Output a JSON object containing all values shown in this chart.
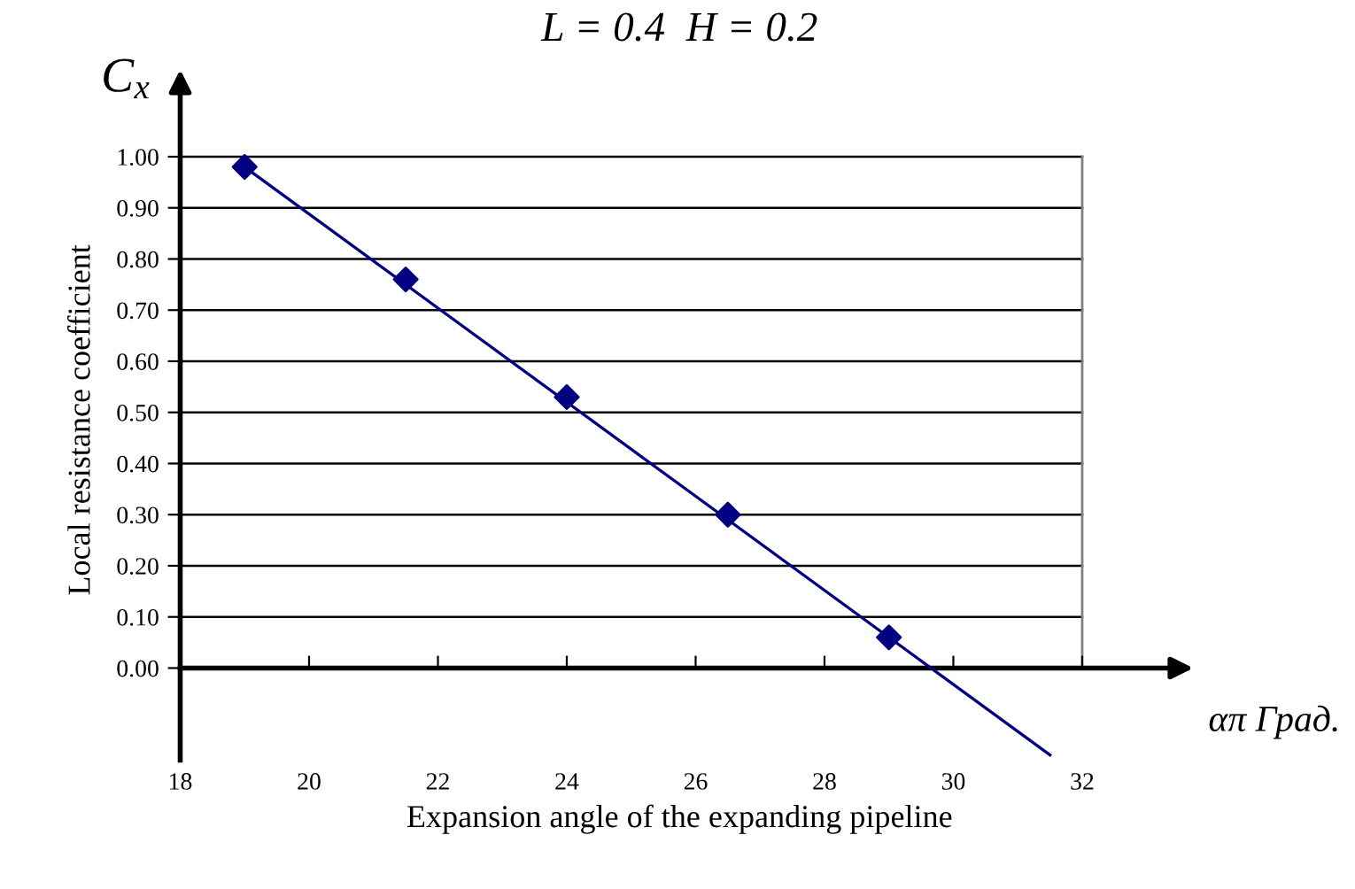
{
  "chart_data": {
    "type": "scatter",
    "title": "L = 0.4  H = 0.2",
    "ylabel": "Local resistance coefficient",
    "xlabel": "Expansion angle of the expanding pipeline",
    "annotations": [
      "C$_{x}$",
      "απ Град."
    ],
    "x": [
      19,
      21.5,
      24,
      26.5,
      29
    ],
    "series": [
      {
        "color": "#000080",
        "marker": "diamond",
        "values": [
          0.98,
          0.76,
          0.53,
          0.3,
          0.06
        ]
      },
      {
        "type": "line",
        "color": "#000080",
        "marker": "none",
        "line_style": "solid",
        "x": [
          19,
          31.5
        ],
        "values": [
          0.98,
          -0.17
        ]
      }
    ],
    "xlim": [
      18,
      33.5
    ],
    "ylim": [
      -0.18,
      1.15
    ],
    "xticks": [
      18,
      20,
      22,
      24,
      26,
      28,
      30,
      32
    ],
    "yticks": [
      {
        "value": 0,
        "label": "0.00"
      },
      {
        "value": 0.1,
        "label": "0.10"
      },
      {
        "value": 0.2,
        "label": "0.20"
      },
      {
        "value": 0.3,
        "label": "0.30"
      },
      {
        "value": 0.4,
        "label": "0.40"
      },
      {
        "value": 0.5,
        "label": "0.50"
      },
      {
        "value": 0.6,
        "label": "0.60"
      },
      {
        "value": 0.7,
        "label": "0.70"
      },
      {
        "value": 0.8,
        "label": "0.80"
      },
      {
        "value": 0.9,
        "label": "0.90"
      },
      {
        "value": 1,
        "label": "1.00"
      }
    ],
    "grid": "y",
    "ref_lines": [
      {
        "axis": "x",
        "value": 32,
        "color": "#808080"
      }
    ]
  }
}
